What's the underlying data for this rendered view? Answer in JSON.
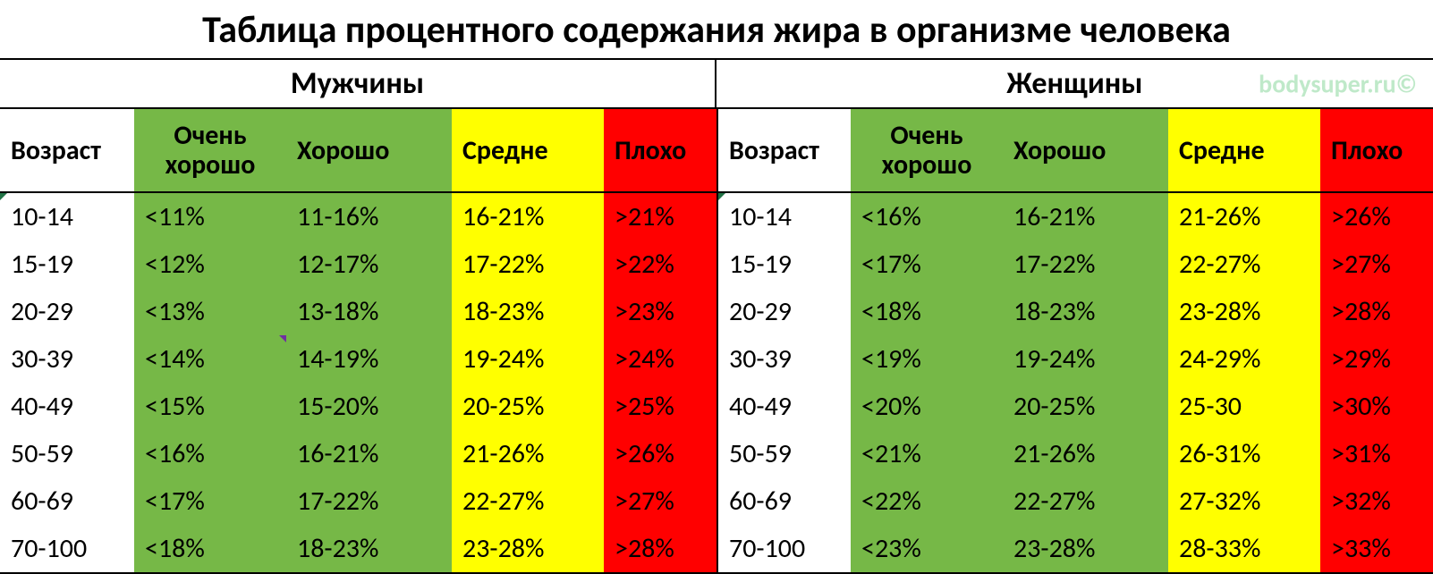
{
  "title": "Таблица процентного содержания жира в организме человека",
  "watermark": "bodysuper.ru©",
  "genders": {
    "male": "Мужчины",
    "female": "Женщины"
  },
  "columns": {
    "age": {
      "label": "Возраст",
      "bg": "bg-white",
      "w": "c-age"
    },
    "vgood": {
      "label_l1": "Очень",
      "label_l2": "хорошо",
      "bg": "bg-green",
      "w": "c-vgood"
    },
    "good": {
      "label": "Хорошо",
      "bg": "bg-green",
      "w": "c-good"
    },
    "avg": {
      "label": "Средне",
      "bg": "bg-yellow",
      "w": "c-avg"
    },
    "bad": {
      "label": "Плохо",
      "bg": "bg-red",
      "w": "c-bad"
    }
  },
  "colors": {
    "green": "#76b847",
    "yellow": "#ffff00",
    "red": "#ff0000",
    "white": "#ffffff",
    "border": "#000000",
    "watermark": "#bfe9c9"
  },
  "font": {
    "family": "Calibri",
    "title_size_pt": 32,
    "header_size_pt": 24,
    "cell_size_pt": 22
  },
  "rows": [
    {
      "age": "10-14",
      "m": {
        "vgood": "<11%",
        "good": "11-16%",
        "avg": "16-21%",
        "bad": ">21%"
      },
      "f": {
        "vgood": "<16%",
        "good": "16-21%",
        "avg": "21-26%",
        "bad": ">26%"
      }
    },
    {
      "age": "15-19",
      "m": {
        "vgood": "<12%",
        "good": "12-17%",
        "avg": "17-22%",
        "bad": ">22%"
      },
      "f": {
        "vgood": "<17%",
        "good": "17-22%",
        "avg": "22-27%",
        "bad": ">27%"
      }
    },
    {
      "age": "20-29",
      "m": {
        "vgood": "<13%",
        "good": "13-18%",
        "avg": "18-23%",
        "bad": ">23%"
      },
      "f": {
        "vgood": "<18%",
        "good": "18-23%",
        "avg": "23-28%",
        "bad": ">28%"
      }
    },
    {
      "age": "30-39",
      "m": {
        "vgood": "<14%",
        "good": "14-19%",
        "avg": "19-24%",
        "bad": ">24%"
      },
      "f": {
        "vgood": "<19%",
        "good": "19-24%",
        "avg": "24-29%",
        "bad": ">29%"
      }
    },
    {
      "age": "40-49",
      "m": {
        "vgood": "<15%",
        "good": "15-20%",
        "avg": "20-25%",
        "bad": ">25%"
      },
      "f": {
        "vgood": "<20%",
        "good": "20-25%",
        "avg": "25-30",
        "bad": ">30%"
      }
    },
    {
      "age": "50-59",
      "m": {
        "vgood": "<16%",
        "good": "16-21%",
        "avg": "21-26%",
        "bad": ">26%"
      },
      "f": {
        "vgood": "<21%",
        "good": "21-26%",
        "avg": "26-31%",
        "bad": ">31%"
      }
    },
    {
      "age": "60-69",
      "m": {
        "vgood": "<17%",
        "good": "17-22%",
        "avg": "22-27%",
        "bad": ">27%"
      },
      "f": {
        "vgood": "<22%",
        "good": "22-27%",
        "avg": "27-32%",
        "bad": ">32%"
      }
    },
    {
      "age": "70-100",
      "m": {
        "vgood": "<18%",
        "good": "18-23%",
        "avg": "23-28%",
        "bad": ">28%"
      },
      "f": {
        "vgood": "<23%",
        "good": "23-28%",
        "avg": "28-33%",
        "bad": ">33%"
      }
    }
  ],
  "markers": {
    "row30_vgood_m_tr": true
  }
}
